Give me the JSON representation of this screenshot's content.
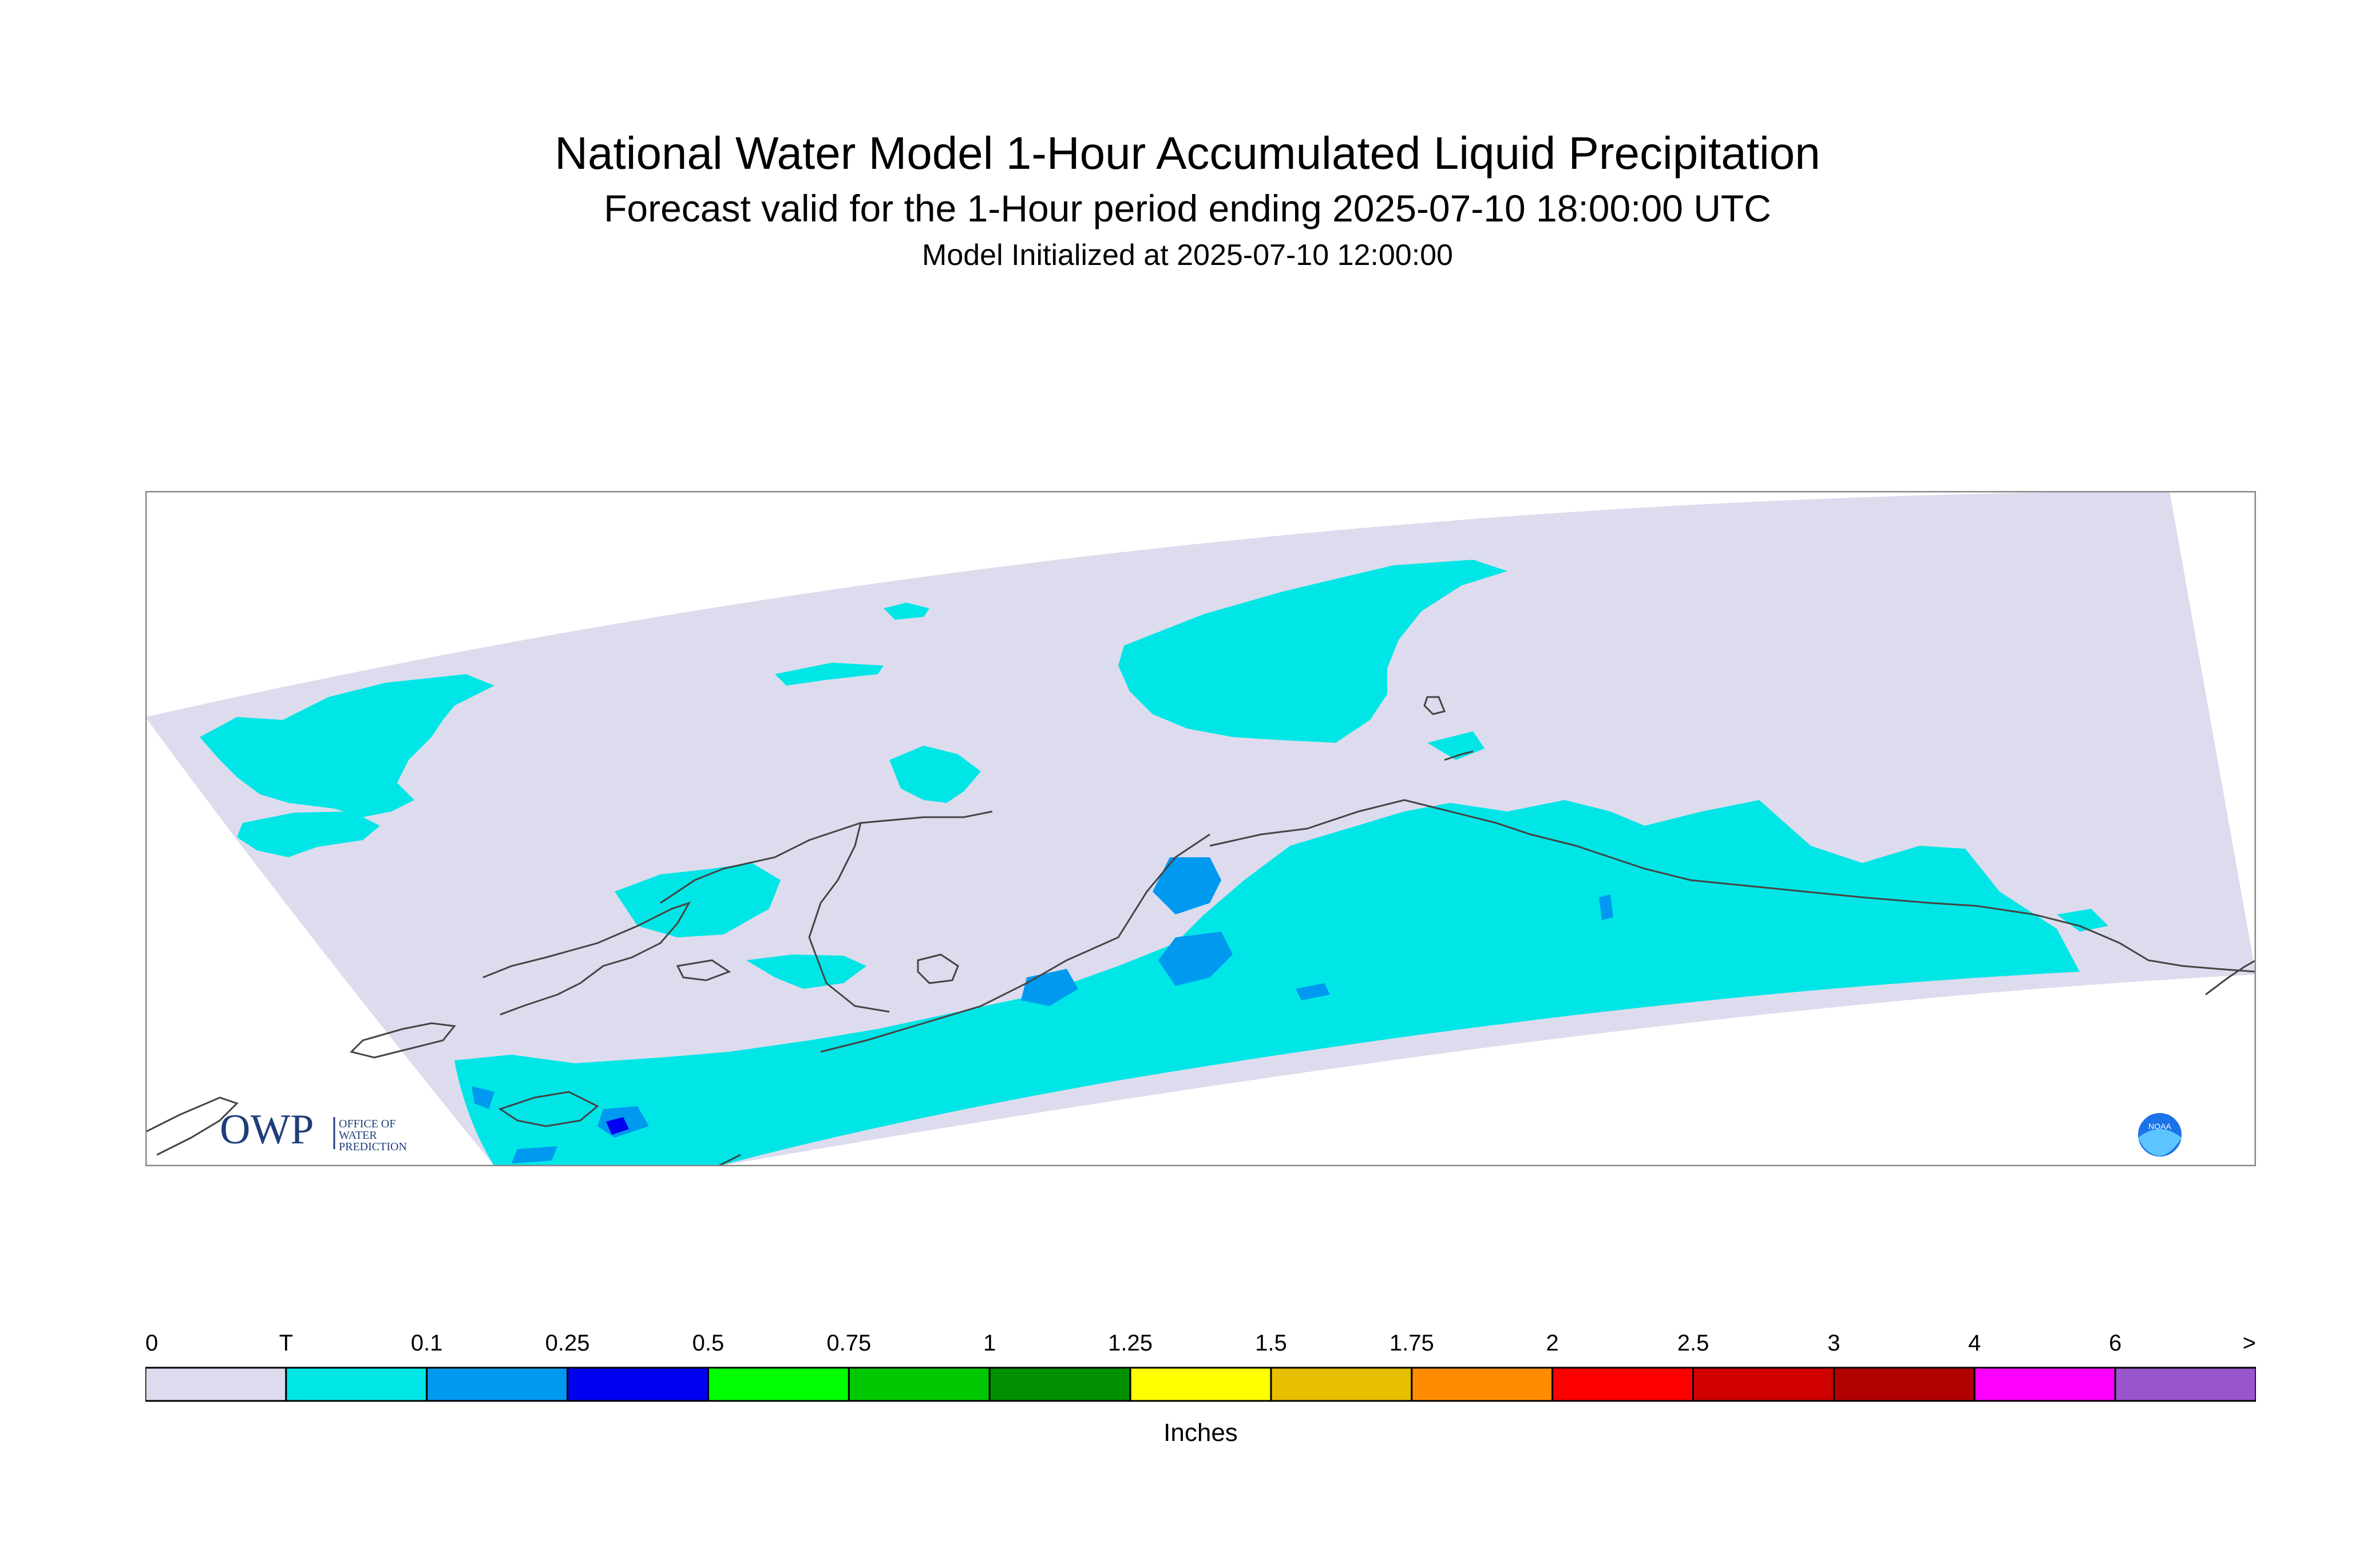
{
  "header": {
    "title": "National Water Model 1-Hour Accumulated Liquid Precipitation",
    "subtitle": "Forecast valid for the 1-Hour period ending 2025-07-10 18:00:00 UTC",
    "init": "Model Initialized at 2025-07-10 12:00:00"
  },
  "logos": {
    "owp_mark": "OWP",
    "owp_lines": [
      "OFFICE OF",
      "WATER",
      "PREDICTION"
    ],
    "noaa": "NOAA"
  },
  "legend": {
    "unit": "Inches",
    "labels": [
      "0",
      "T",
      "0.1",
      "0.25",
      "0.5",
      "0.75",
      "1",
      "1.25",
      "1.5",
      "1.75",
      "2",
      "2.5",
      "3",
      "4",
      "6",
      ">"
    ],
    "colors": [
      "#dcdcee",
      "#00e6e6",
      "#0099f0",
      "#0000f0",
      "#00ff00",
      "#00c800",
      "#009000",
      "#ffff00",
      "#e6c000",
      "#ff8c00",
      "#ff0000",
      "#d00000",
      "#b00000",
      "#ff00ff",
      "#9955cc"
    ]
  },
  "colors": {
    "domain": "#dcdcee",
    "trace": "#00e6e6",
    "light": "#0099f0",
    "heavy": "#0000f0",
    "coast": "#444444",
    "frame": "#888888"
  }
}
